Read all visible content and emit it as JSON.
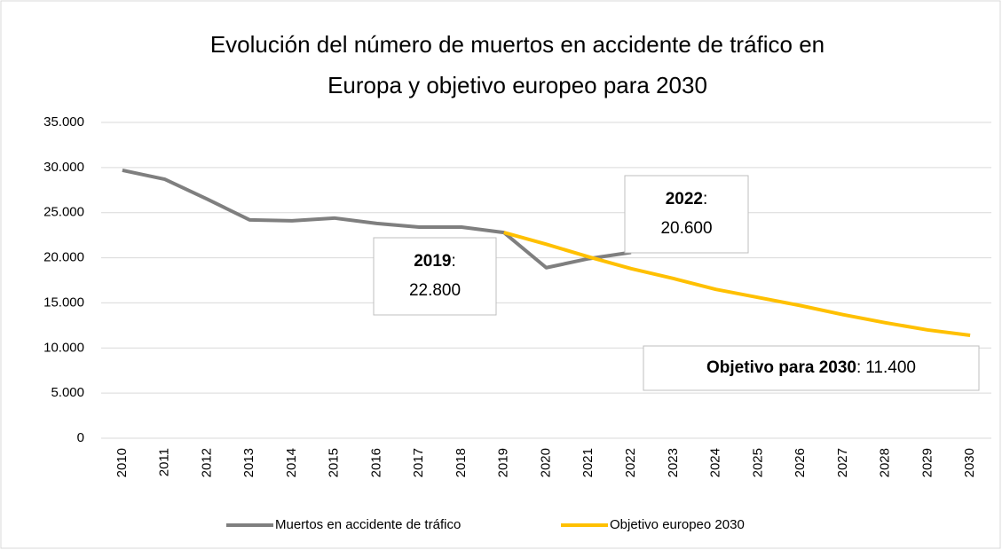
{
  "chart_data": {
    "type": "line",
    "title": "Evolución del número de muertos en accidente de tráfico en",
    "subtitle": "Europa y objetivo europeo para 2030",
    "categories": [
      "2010",
      "2011",
      "2012",
      "2013",
      "2014",
      "2015",
      "2016",
      "2017",
      "2018",
      "2019",
      "2020",
      "2021",
      "2022",
      "2023",
      "2024",
      "2025",
      "2026",
      "2027",
      "2028",
      "2029",
      "2030"
    ],
    "series": [
      {
        "name": "Muertos en accidente de tráfico",
        "color": "#7f7f7f",
        "values": [
          29700,
          28700,
          26500,
          24200,
          24100,
          24400,
          23800,
          23400,
          23400,
          22800,
          18900,
          19900,
          20600,
          null,
          null,
          null,
          null,
          null,
          null,
          null,
          null
        ]
      },
      {
        "name": "Objetivo europeo 2030",
        "color": "#ffc000",
        "values": [
          null,
          null,
          null,
          null,
          null,
          null,
          null,
          null,
          null,
          22800,
          21500,
          20100,
          18800,
          17700,
          16500,
          15600,
          14700,
          13700,
          12800,
          12000,
          11400
        ]
      }
    ],
    "ylim": [
      0,
      35000
    ],
    "yticks": [
      0,
      {
        "value": 5000,
        "label": "5.000"
      },
      {
        "value": 10000,
        "label": "10.000"
      },
      {
        "value": 15000,
        "label": "15.000"
      },
      {
        "value": 20000,
        "label": "20.000"
      },
      {
        "value": 25000,
        "label": "25.000"
      },
      {
        "value": 30000,
        "label": "30.000"
      },
      {
        "value": 35000,
        "label": "35.000"
      }
    ],
    "grid": true,
    "legend": "bottom",
    "annotations": [
      {
        "title": "2019",
        "separator": ":",
        "text": "22.800"
      },
      {
        "title": "2022",
        "separator": ":",
        "text": "20.600"
      },
      {
        "title": "Objetivo para 2030",
        "separator": ":",
        "text": "11.400"
      }
    ]
  }
}
